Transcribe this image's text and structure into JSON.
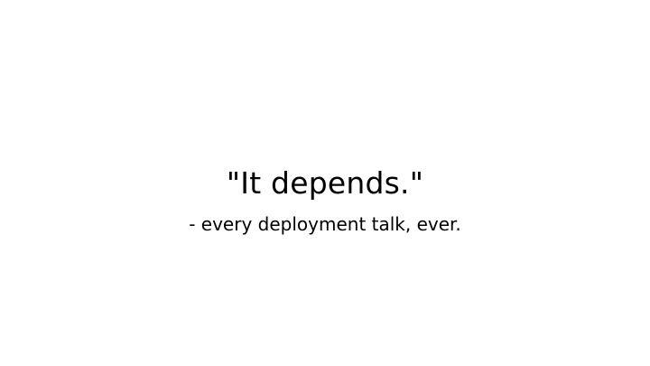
{
  "slide": {
    "quote": "\"It depends.\"",
    "attribution": "- every deployment talk, ever."
  }
}
